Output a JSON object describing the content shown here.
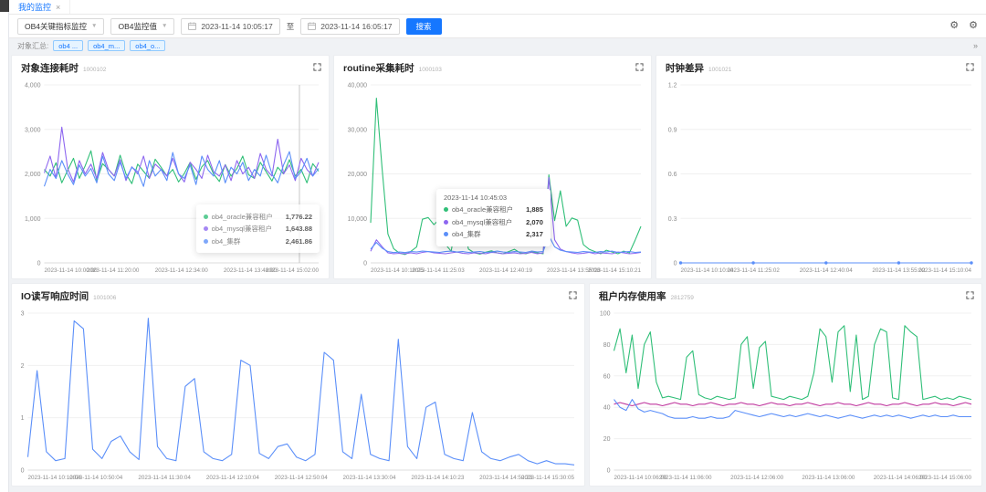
{
  "tabbar": {
    "active_tab": "我的监控",
    "close_label": "×"
  },
  "toolbar": {
    "metric_select": "OB4关键指标监控",
    "value_select": "OB4监控值",
    "date_from": "2023-11-14 10:05:17",
    "range_separator": "至",
    "date_to": "2023-11-14 16:05:17",
    "search_label": "搜索",
    "gear_icon": "⚙"
  },
  "filter": {
    "label": "对象汇总:",
    "tags": [
      {
        "label": "ob4 ..."
      },
      {
        "label": "ob4_m..."
      },
      {
        "label": "ob4_o..."
      }
    ],
    "collapse_icon": "»"
  },
  "colors": {
    "accent": "#1677ff",
    "green": "#30bf78",
    "purple": "#8d66f0",
    "blue": "#5b8ff9"
  },
  "charts": [
    {
      "type": "line",
      "title": "对象连接耗时",
      "code": "1000102",
      "ymax": 4000,
      "yticks": [
        0,
        1000,
        2000,
        3000,
        4000
      ],
      "x_labels": [
        "2023-11-14 10:00:00",
        "2023-11-14 11:20:00",
        "2023-11-14 12:34:00",
        "2023-11-14 13:48:00",
        "2023-11-14 15:02:00"
      ],
      "crosshair": 0.93,
      "series": [
        {
          "name": "ob4_oracle兼容租户",
          "color": "#30bf78",
          "values": [
            2100,
            1950,
            2250,
            1800,
            2080,
            2350,
            1900,
            2180,
            2520,
            1850,
            2230,
            2100,
            1950,
            2420,
            2000,
            1780,
            2220,
            2060,
            1900,
            2330,
            2150,
            1950,
            2100,
            1820,
            2010,
            2260,
            1880,
            2160,
            2300,
            2000,
            1830,
            2210,
            1950,
            2120,
            2400,
            1980,
            1900,
            2260,
            2050,
            1840,
            2150,
            2000,
            2320,
            1950,
            2100,
            1800,
            2230,
            2060
          ]
        },
        {
          "name": "ob4_mysql兼容租户",
          "color": "#8d66f0",
          "values": [
            2020,
            2400,
            1900,
            3050,
            2120,
            1820,
            2300,
            2000,
            2220,
            1900,
            2480,
            2100,
            1950,
            2320,
            1850,
            2160,
            2000,
            2400,
            1900,
            2220,
            2100,
            1950,
            2350,
            2000,
            1820,
            2260,
            2100,
            1900,
            2420,
            2050,
            1950,
            2200,
            1850,
            2300,
            2000,
            2150,
            1900,
            2460,
            2100,
            1950,
            2780,
            2000,
            2200,
            1850,
            2350,
            2100,
            1950,
            2260
          ]
        },
        {
          "name": "ob4_集群",
          "color": "#5b8ff9",
          "values": [
            1720,
            2100,
            1900,
            2300,
            2000,
            1760,
            2200,
            1950,
            2120,
            1800,
            2400,
            2000,
            1850,
            2260,
            1900,
            2150,
            2050,
            1720,
            2300,
            1950,
            2100,
            1850,
            2480,
            2000,
            1900,
            2200,
            1760,
            2400,
            2100,
            1950,
            2300,
            1800,
            2150,
            2000,
            2260,
            1850,
            2100,
            1950,
            2420,
            2000,
            1800,
            2200,
            2500,
            1900,
            2050,
            2350,
            1950,
            2120
          ]
        }
      ],
      "tooltip": {
        "rows": [
          {
            "name": "ob4_oracle兼容租户",
            "value": "1,776.22"
          },
          {
            "name": "ob4_mysql兼容租户",
            "value": "1,643.88"
          },
          {
            "name": "ob4_集群",
            "value": "2,461.86"
          }
        ]
      }
    },
    {
      "type": "line",
      "title": "routine采集耗时",
      "code": "1000103",
      "ymax": 40000,
      "yticks": [
        0,
        10000,
        20000,
        30000,
        40000
      ],
      "x_labels": [
        "2023-11-14 10:10:25",
        "2023-11-14 11:25:03",
        "2023-11-14 12:40:19",
        "2023-11-14 13:55:08",
        "2023-11-14 15:10:21"
      ],
      "series": [
        {
          "name": "ob4_oracle兼容租户",
          "color": "#30bf78",
          "values": [
            9000,
            37000,
            21000,
            6500,
            3200,
            2200,
            1885,
            2600,
            3600,
            9800,
            10200,
            8600,
            9900,
            4200,
            2600,
            10600,
            9200,
            3100,
            2300,
            2000,
            2400,
            2700,
            2250,
            2050,
            2550,
            3050,
            2250,
            2050,
            2450,
            2250,
            2050,
            19800,
            9500,
            16200,
            8200,
            10100,
            9600,
            4100,
            3050,
            2550,
            2050,
            2850,
            2450,
            2050,
            2650,
            2250,
            5100,
            8200
          ]
        },
        {
          "name": "ob4_mysql兼容租户",
          "color": "#8d66f0",
          "values": [
            2600,
            5200,
            3600,
            2250,
            2050,
            2150,
            2070,
            2250,
            2050,
            2350,
            2550,
            2250,
            2150,
            2050,
            2250,
            2450,
            2150,
            2050,
            2250,
            2150,
            2050,
            2350,
            2250,
            2050,
            2150,
            2250,
            2050,
            2150,
            2350,
            2050,
            2250,
            19200,
            5200,
            3100,
            2550,
            2250,
            2050,
            2150,
            2350,
            2050,
            2250,
            2150,
            2050,
            2450,
            2250,
            2050,
            2150,
            2350
          ]
        },
        {
          "name": "ob4_集群",
          "color": "#5b8ff9",
          "values": [
            3100,
            4600,
            3300,
            2550,
            2317,
            2450,
            2317,
            2550,
            2450,
            2650,
            2550,
            2450,
            2350,
            2550,
            2650,
            2450,
            2550,
            2350,
            2450,
            2550,
            2350,
            2450,
            2650,
            2450,
            2350,
            2550,
            2450,
            2350,
            2650,
            2450,
            2550,
            6100,
            3600,
            2850,
            2550,
            2450,
            2350,
            2550,
            2450,
            2350,
            2550,
            2450,
            2650,
            2350,
            2450,
            2550,
            2350,
            2450
          ]
        }
      ],
      "tooltip": {
        "title": "2023-11-14 10:45:03",
        "rows": [
          {
            "name": "ob4_oracle兼容租户",
            "value": "1,885"
          },
          {
            "name": "ob4_mysql兼容租户",
            "value": "2,070"
          },
          {
            "name": "ob4_集群",
            "value": "2,317"
          }
        ]
      }
    },
    {
      "type": "line",
      "title": "时钟差异",
      "code": "1001021",
      "ymax": 1.2,
      "yticks": [
        0,
        0.3,
        0.6,
        0.9,
        1.2
      ],
      "marker_every": 6,
      "x_labels": [
        "2023-11-14 10:10:04",
        "2023-11-14 11:25:02",
        "2023-11-14 12:40:04",
        "2023-11-14 13:55:02",
        "2023-11-14 15:10:04"
      ],
      "series": [
        {
          "name": "ob4_集群",
          "color": "#5b8ff9",
          "values": [
            0,
            0,
            0,
            0,
            0,
            0,
            0,
            0,
            0,
            0,
            0,
            0,
            0,
            0,
            0,
            0,
            0,
            0,
            0,
            0,
            0,
            0,
            0,
            0,
            0
          ]
        }
      ]
    },
    {
      "type": "line",
      "title": "IO读写响应时间",
      "code": "1001006",
      "ymax": 3,
      "yticks": [
        0,
        1,
        2,
        3
      ],
      "x_labels": [
        "2023-11-14 10:10:04",
        "2023-11-14 10:50:04",
        "2023-11-14 11:30:04",
        "2023-11-14 12:10:04",
        "2023-11-14 12:50:04",
        "2023-11-14 13:30:04",
        "2023-11-14 14:10:23",
        "2023-11-14 14:50:23",
        "2023-11-14 15:30:05"
      ],
      "series": [
        {
          "name": "ob4_集群",
          "color": "#5b8ff9",
          "values": [
            0.25,
            1.9,
            0.35,
            0.18,
            0.22,
            2.85,
            2.7,
            0.4,
            0.22,
            0.55,
            0.65,
            0.35,
            0.2,
            2.9,
            0.45,
            0.22,
            0.18,
            1.6,
            1.75,
            0.35,
            0.22,
            0.18,
            0.3,
            2.1,
            2.0,
            0.32,
            0.22,
            0.45,
            0.5,
            0.25,
            0.18,
            0.3,
            2.25,
            2.1,
            0.35,
            0.22,
            1.45,
            0.3,
            0.22,
            0.18,
            2.5,
            0.45,
            0.22,
            1.2,
            1.3,
            0.3,
            0.22,
            0.18,
            1.1,
            0.35,
            0.22,
            0.18,
            0.25,
            0.3,
            0.18,
            0.12,
            0.18,
            0.12,
            0.12,
            0.1
          ]
        }
      ]
    },
    {
      "type": "line",
      "title": "租户内存使用率",
      "code": "2812759",
      "ymax": 100,
      "yticks": [
        0,
        20,
        40,
        60,
        80,
        100
      ],
      "x_labels": [
        "2023-11-14 10:06:00",
        "2023-11-14 11:06:00",
        "2023-11-14 12:06:00",
        "2023-11-14 13:06:00",
        "2023-11-14 14:06:00",
        "2023-11-14 15:06:00"
      ],
      "series": [
        {
          "color": "#30bf78",
          "values": [
            76,
            90,
            62,
            86,
            52,
            80,
            88,
            56,
            46,
            47,
            46,
            45,
            72,
            76,
            48,
            46,
            45,
            47,
            46,
            45,
            46,
            80,
            85,
            52,
            78,
            82,
            47,
            46,
            45,
            47,
            46,
            45,
            47,
            62,
            90,
            85,
            56,
            88,
            92,
            50,
            86,
            45,
            47,
            80,
            90,
            88,
            46,
            45,
            92,
            88,
            85,
            45,
            46,
            47,
            45,
            46,
            45,
            47,
            46,
            45
          ]
        },
        {
          "color": "#c0399f",
          "values": [
            42,
            43,
            42,
            41,
            42,
            43,
            42,
            42,
            41,
            42,
            43,
            42,
            42,
            41,
            42,
            42,
            43,
            42,
            41,
            42,
            42,
            43,
            42,
            42,
            41,
            42,
            43,
            42,
            42,
            41,
            42,
            42,
            43,
            42,
            41,
            42,
            42,
            43,
            42,
            42,
            41,
            42,
            43,
            42,
            42,
            41,
            42,
            42,
            43,
            42,
            41,
            42,
            42,
            43,
            42,
            42,
            41,
            42,
            43,
            42
          ]
        },
        {
          "color": "#5b8ff9",
          "values": [
            45,
            40,
            38,
            45,
            39,
            37,
            38,
            37,
            36,
            34,
            33,
            33,
            33,
            34,
            33,
            33,
            34,
            33,
            33,
            34,
            38,
            37,
            36,
            35,
            34,
            35,
            36,
            35,
            34,
            35,
            34,
            35,
            36,
            35,
            34,
            35,
            34,
            33,
            34,
            35,
            34,
            33,
            34,
            35,
            34,
            35,
            34,
            35,
            34,
            33,
            34,
            35,
            34,
            35,
            34,
            34,
            35,
            34,
            34,
            34
          ]
        }
      ]
    }
  ]
}
